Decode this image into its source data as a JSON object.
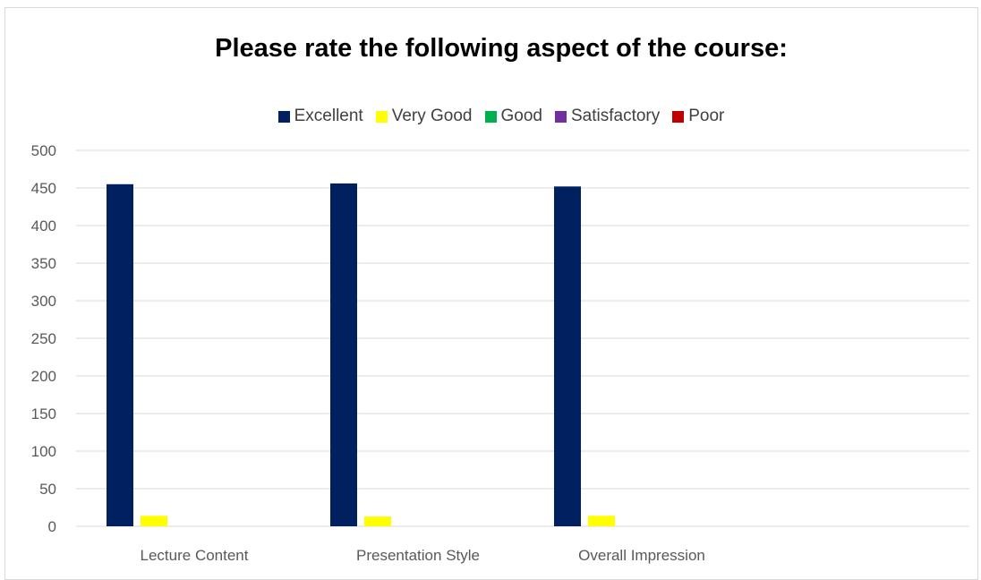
{
  "chart_data": {
    "type": "bar",
    "title": "Please rate the following aspect of the course:",
    "categories": [
      "Lecture Content",
      "Presentation Style",
      "Overall Impression"
    ],
    "series": [
      {
        "name": "Excellent",
        "color": "#002060",
        "values": [
          455,
          456,
          452
        ]
      },
      {
        "name": "Very Good",
        "color": "#ffff00",
        "values": [
          14,
          13,
          14
        ]
      },
      {
        "name": "Good",
        "color": "#00b050",
        "values": [
          0,
          0,
          0
        ]
      },
      {
        "name": "Satisfactory",
        "color": "#7030a0",
        "values": [
          0,
          0,
          0
        ]
      },
      {
        "name": "Poor",
        "color": "#c00000",
        "values": [
          0,
          0,
          0
        ]
      }
    ],
    "yticks": [
      "0",
      "50",
      "100",
      "150",
      "200",
      "250",
      "300",
      "350",
      "400",
      "450",
      "500"
    ],
    "ylim": [
      0,
      500
    ],
    "grid": true,
    "legend_position": "top"
  }
}
